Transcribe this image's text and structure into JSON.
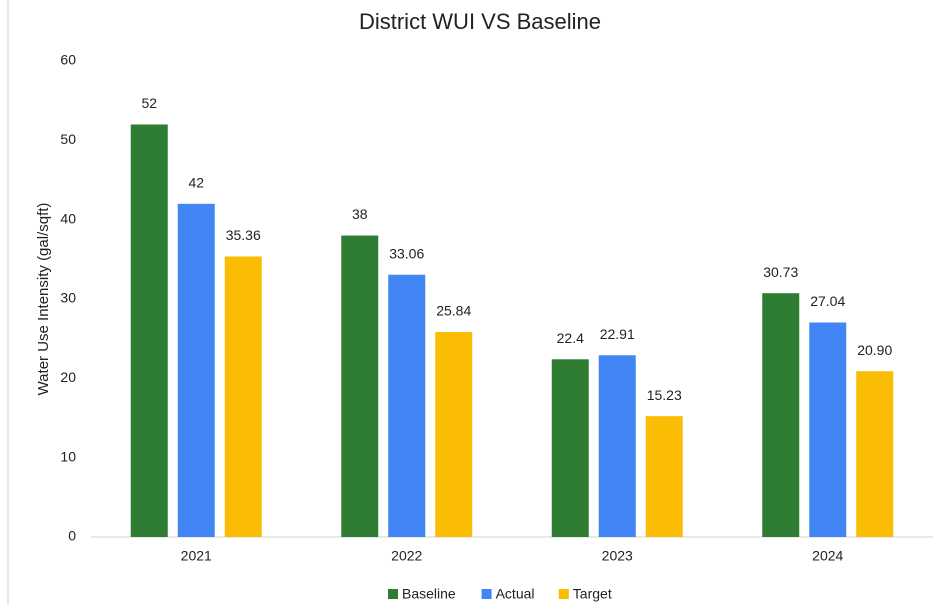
{
  "chart_data": {
    "type": "bar",
    "title": "District WUI VS Baseline",
    "y_label": "Water Use Intensity (gal/sqft)",
    "categories": [
      "2021",
      "2022",
      "2023",
      "2024"
    ],
    "series": [
      {
        "name": "Baseline",
        "color": "#2e7d32",
        "values": [
          52,
          38,
          22.4,
          30.73
        ]
      },
      {
        "name": "Actual",
        "color": "#4285f4",
        "values": [
          42,
          33.06,
          22.91,
          27.04
        ]
      },
      {
        "name": "Target",
        "color": "#fbbc04",
        "values": [
          35.36,
          25.84,
          15.23,
          20.9
        ],
        "value_labels": [
          "35.36",
          "25.84",
          "15.23",
          "20.90"
        ]
      }
    ],
    "ylim": [
      0,
      60
    ],
    "yticks": [
      0,
      10,
      20,
      30,
      40,
      50,
      60
    ],
    "grid": false,
    "legend": "bottom"
  }
}
